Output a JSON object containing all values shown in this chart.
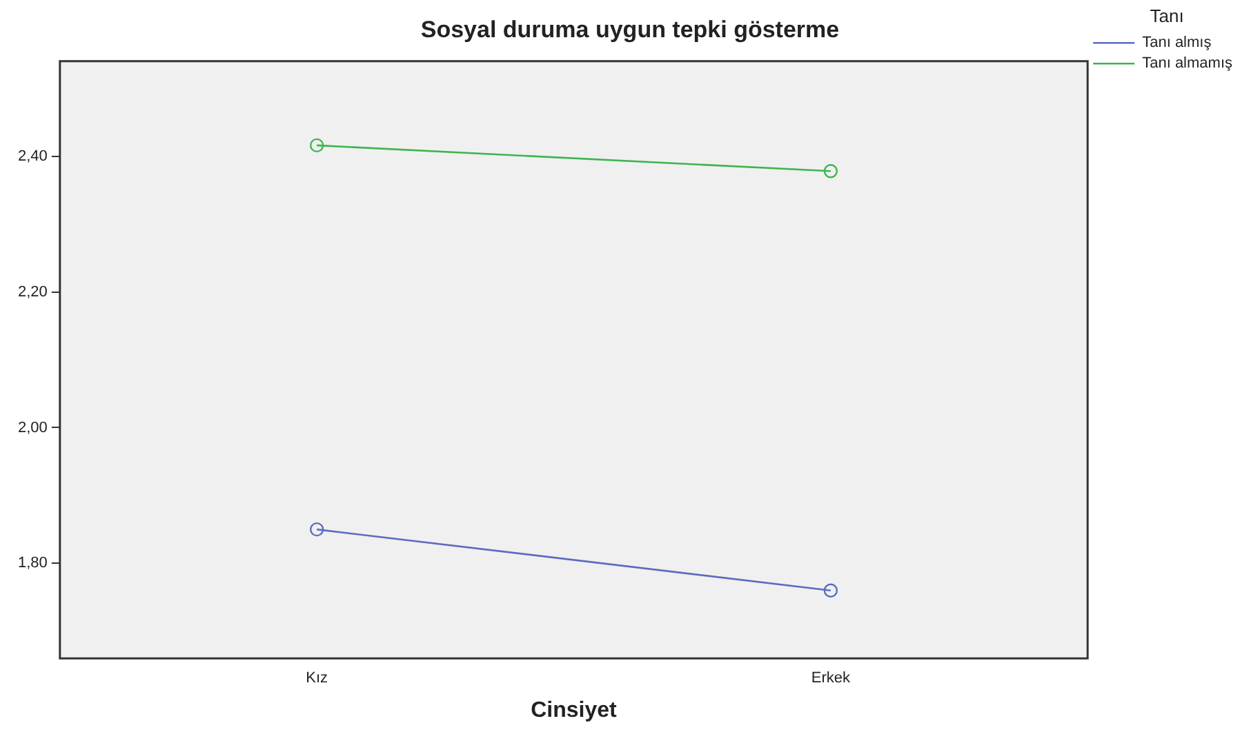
{
  "chart_data": {
    "type": "line",
    "title": "Sosyal duruma uygun tepki gösterme",
    "xlabel": "Cinsiyet",
    "legend_title": "Tanı",
    "legend": "top right",
    "marker": "circle",
    "grid": false,
    "categories": [
      "Kız",
      "Erkek"
    ],
    "series": [
      {
        "name": "Tanı almış",
        "color": "#5c6bc0",
        "values": [
          1.85,
          1.76
        ]
      },
      {
        "name": "Tanı almamış",
        "color": "#3cb550",
        "values": [
          2.416,
          2.378
        ]
      }
    ],
    "ylim": [
      1.66,
      2.54
    ],
    "yticks": [
      {
        "value": 1.8,
        "label": "1,80"
      },
      {
        "value": 2.0,
        "label": "2,00"
      },
      {
        "value": 2.2,
        "label": "2,20"
      },
      {
        "value": 2.4,
        "label": "2,40"
      }
    ]
  }
}
